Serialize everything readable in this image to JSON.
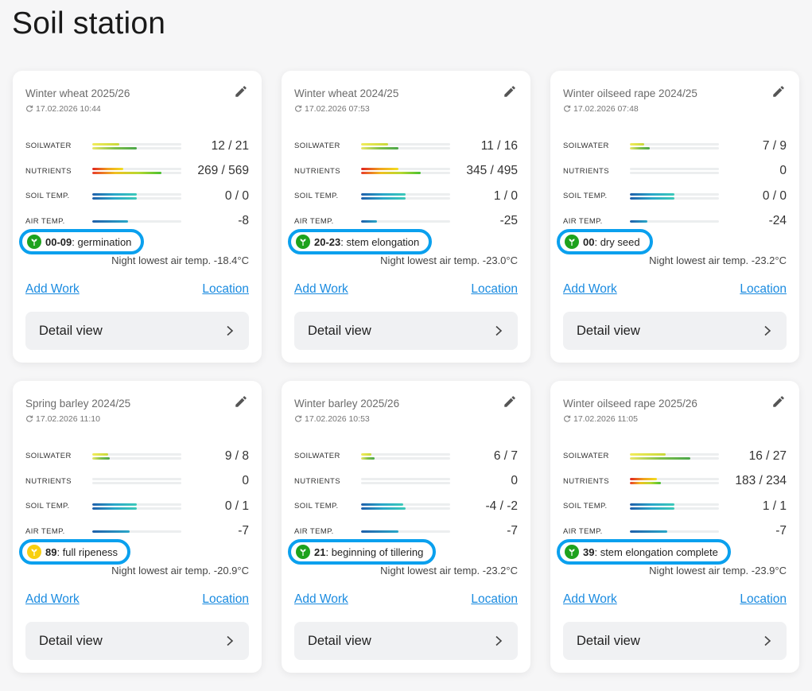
{
  "page": {
    "title": "Soil station"
  },
  "labels": {
    "soilwater": "SOILWATER",
    "nutrients": "NUTRIENTS",
    "soiltemp": "SOIL TEMP.",
    "airtemp": "AIR TEMP.",
    "add_work": "Add Work",
    "location": "Location",
    "detail_view": "Detail view"
  },
  "icons": {
    "edit": "pencil-icon",
    "refresh": "refresh-icon",
    "chevron": "chevron-right-icon",
    "stage": "plant-stage-icon"
  },
  "colors": {
    "stage_green": "#1ea21e",
    "stage_yellow": "#f8cf10",
    "highlight_ring": "#0aa0ee",
    "link": "#1a8be0"
  },
  "cards": [
    {
      "title": "Winter wheat 2025/26",
      "updated": "17.02.2026 10:44",
      "soilwater": "12 / 21",
      "nutrients": "269 / 569",
      "soiltemp": "0 / 0",
      "airtemp": "-8",
      "stage_code": "00-09",
      "stage_name": ": germination",
      "stage_color": "green",
      "night_temp": "Night lowest air temp. -18.4°C",
      "bars": {
        "soilwater": [
          0.3,
          0.5
        ],
        "nutrients": [
          0.35,
          0.78
        ],
        "soiltemp": [
          0.5,
          0.5
        ],
        "airtemp": [
          0.4
        ]
      }
    },
    {
      "title": "Winter wheat 2024/25",
      "updated": "17.02.2026 07:53",
      "soilwater": "11 / 16",
      "nutrients": "345 / 495",
      "soiltemp": "1 / 0",
      "airtemp": "-25",
      "stage_code": "20-23",
      "stage_name": ": stem elongation",
      "stage_color": "green",
      "night_temp": "Night lowest air temp. -23.0°C",
      "bars": {
        "soilwater": [
          0.3,
          0.42
        ],
        "nutrients": [
          0.42,
          0.67
        ],
        "soiltemp": [
          0.5,
          0.5
        ],
        "airtemp": [
          0.18
        ]
      }
    },
    {
      "title": "Winter oilseed rape 2024/25",
      "updated": "17.02.2026 07:48",
      "soilwater": "7 / 9",
      "nutrients": "0",
      "soiltemp": "0 / 0",
      "airtemp": "-24",
      "stage_code": "00",
      "stage_name": ": dry seed",
      "stage_color": "green",
      "night_temp": "Night lowest air temp. -23.2°C",
      "bars": {
        "soilwater": [
          0.16,
          0.22
        ],
        "nutrients": [
          0,
          0
        ],
        "soiltemp": [
          0.5,
          0.5
        ],
        "airtemp": [
          0.2
        ]
      }
    },
    {
      "title": "Spring barley 2024/25",
      "updated": "17.02.2026 11:10",
      "soilwater": "9 / 8",
      "nutrients": "0",
      "soiltemp": "0 / 1",
      "airtemp": "-7",
      "stage_code": "89",
      "stage_name": ": full ripeness",
      "stage_color": "yellow",
      "night_temp": "Night lowest air temp. -20.9°C",
      "bars": {
        "soilwater": [
          0.18,
          0.2
        ],
        "nutrients": [
          0,
          0
        ],
        "soiltemp": [
          0.5,
          0.5
        ],
        "airtemp": [
          0.42
        ]
      }
    },
    {
      "title": "Winter barley 2025/26",
      "updated": "17.02.2026 10:53",
      "soilwater": "6 / 7",
      "nutrients": "0",
      "soiltemp": "-4 / -2",
      "airtemp": "-7",
      "stage_code": "21",
      "stage_name": ": beginning of tillering",
      "stage_color": "green",
      "night_temp": "Night lowest air temp. -23.2°C",
      "bars": {
        "soilwater": [
          0.12,
          0.15
        ],
        "nutrients": [
          0,
          0
        ],
        "soiltemp": [
          0.47,
          0.5
        ],
        "airtemp": [
          0.42
        ]
      }
    },
    {
      "title": "Winter oilseed rape 2025/26",
      "updated": "17.02.2026 11:05",
      "soilwater": "16 / 27",
      "nutrients": "183 / 234",
      "soiltemp": "1 / 1",
      "airtemp": "-7",
      "stage_code": "39",
      "stage_name": ": stem elongation complete",
      "stage_color": "green",
      "night_temp": "Night lowest air temp. -23.9°C",
      "bars": {
        "soilwater": [
          0.4,
          0.68
        ],
        "nutrients": [
          0.3,
          0.35
        ],
        "soiltemp": [
          0.5,
          0.5
        ],
        "airtemp": [
          0.42
        ]
      }
    }
  ]
}
